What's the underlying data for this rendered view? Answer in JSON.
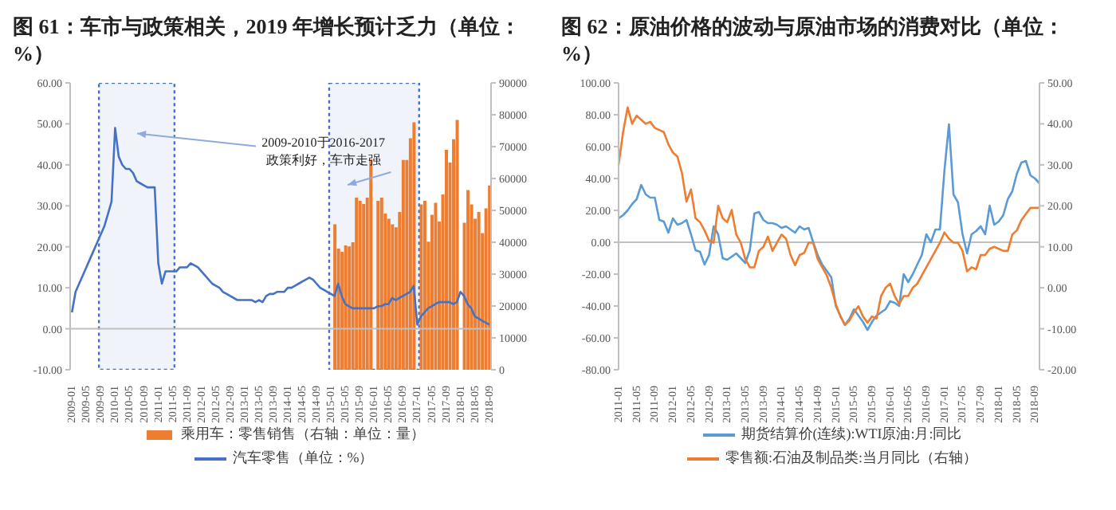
{
  "chart_data": [
    {
      "type": "bar",
      "title": "图 61：车市与政策相关，2019 年增长预计乏力（单位：%）",
      "categories": [
        "2009-01",
        null,
        null,
        null,
        "2009-05",
        null,
        null,
        null,
        "2009-09",
        null,
        null,
        null,
        "2010-01",
        null,
        null,
        null,
        "2010-05",
        null,
        null,
        null,
        "2010-09",
        null,
        null,
        null,
        "2011-01",
        null,
        null,
        null,
        "2011-05",
        null,
        null,
        null,
        "2011-09",
        null,
        null,
        null,
        "2012-01",
        null,
        null,
        null,
        "2012-05",
        null,
        null,
        null,
        "2012-09",
        null,
        null,
        null,
        "2013-01",
        null,
        null,
        null,
        "2013-05",
        null,
        null,
        null,
        "2013-09",
        null,
        null,
        null,
        "2014-01",
        null,
        null,
        null,
        "2014-05",
        null,
        null,
        null,
        "2014-09",
        null,
        null,
        null,
        "2015-01",
        null,
        null,
        null,
        "2015-05",
        null,
        null,
        null,
        "2015-09",
        null,
        null,
        null,
        "2016-01",
        null,
        null,
        null,
        "2016-05",
        null,
        null,
        null,
        "2016-09",
        null,
        null,
        null,
        "2017-01",
        null,
        null,
        null,
        "2017-05",
        null,
        null,
        null,
        "2017-09",
        null,
        null,
        null,
        "2018-01",
        null,
        null,
        null,
        "2018-05",
        null,
        null,
        null,
        "2018-09"
      ],
      "series": [
        {
          "name": "乘用车：零售销售（右轴：单位：量）",
          "axis": "y2",
          "color": "#ed7d31",
          "values": [
            null,
            null,
            null,
            null,
            null,
            null,
            null,
            null,
            null,
            null,
            null,
            null,
            null,
            null,
            null,
            null,
            null,
            null,
            null,
            null,
            null,
            null,
            null,
            null,
            null,
            null,
            null,
            null,
            null,
            null,
            null,
            null,
            null,
            null,
            null,
            null,
            null,
            null,
            null,
            null,
            null,
            null,
            null,
            null,
            null,
            null,
            null,
            null,
            null,
            null,
            null,
            null,
            null,
            null,
            null,
            null,
            null,
            null,
            null,
            null,
            null,
            null,
            null,
            null,
            null,
            null,
            null,
            null,
            null,
            null,
            null,
            null,
            null,
            45600,
            38000,
            37000,
            39000,
            38700,
            40000,
            54000,
            53000,
            52000,
            54000,
            66000,
            null,
            53000,
            54000,
            49000,
            47400,
            45600,
            44700,
            49500,
            65800,
            65800,
            72600,
            77600,
            null,
            51900,
            53000,
            40200,
            48600,
            52400,
            46500,
            55000,
            69000,
            65000,
            72300,
            78400,
            null,
            46100,
            56400,
            51900,
            47400,
            49500,
            42900,
            50600,
            57800
          ]
        },
        {
          "name": "汽车零售（单位：%）",
          "type": "line",
          "axis": "y",
          "color": "#4472c4",
          "values": [
            4,
            9,
            11,
            13,
            15,
            17,
            19,
            21,
            23,
            25,
            28,
            31,
            49,
            42,
            40,
            39,
            39,
            38,
            36,
            35.5,
            35,
            34.5,
            34.5,
            34.5,
            16,
            11,
            14,
            14,
            14,
            14,
            15,
            15,
            15,
            16,
            15.5,
            15,
            14,
            13,
            12,
            11,
            10.5,
            10,
            9,
            8.5,
            8,
            7.5,
            7,
            7,
            7,
            7,
            7,
            6.5,
            7,
            6.5,
            8,
            8.5,
            8.5,
            9,
            9,
            9,
            10,
            10,
            10.5,
            11,
            11.5,
            12,
            12.5,
            12,
            11,
            10,
            9.5,
            9,
            8.5,
            8,
            11,
            8,
            6,
            5.5,
            5,
            5,
            5,
            5,
            5,
            5,
            5,
            5.5,
            5.5,
            6,
            6,
            7.5,
            7,
            7.5,
            8,
            8.5,
            9,
            10.5,
            1,
            3,
            4,
            5,
            5.5,
            6,
            6.5,
            6.5,
            6.5,
            6.5,
            6,
            6.5,
            9,
            8,
            6,
            5,
            3,
            2.5,
            2,
            1.5,
            1
          ]
        }
      ],
      "ylim": [
        -10,
        60
      ],
      "yticks": [
        {
          "value": -10,
          "label": "-10.00"
        },
        {
          "value": 0,
          "label": "0.00"
        },
        {
          "value": 10,
          "label": "10.00"
        },
        {
          "value": 20,
          "label": "20.00"
        },
        {
          "value": 30,
          "label": "30.00"
        },
        {
          "value": 40,
          "label": "40.00"
        },
        {
          "value": 50,
          "label": "50.00"
        },
        {
          "value": 60,
          "label": "60.00"
        }
      ],
      "y2lim": [
        0,
        90000
      ],
      "y2ticks": [
        0,
        10000,
        20000,
        30000,
        40000,
        50000,
        60000,
        70000,
        80000,
        90000
      ],
      "ref_lines": [
        {
          "axis": "y",
          "value": 0,
          "color": "#bfbfbf"
        }
      ],
      "bands": [
        {
          "axis": "x",
          "from": "2009-09",
          "to": "2011-05",
          "color": "#4472c4"
        },
        {
          "axis": "x",
          "from": "2015-01",
          "to": "2017-01",
          "color": "#4472c4"
        }
      ],
      "annotations": [
        "2009-2010于2016-2017政策利好，车市走强"
      ],
      "grid": false,
      "legend": "bottom"
    },
    {
      "type": "line",
      "title": "图 62：原油价格的波动与原油市场的消费对比（单位：%）",
      "categories": [
        "2011-01",
        null,
        null,
        null,
        "2011-05",
        null,
        null,
        null,
        "2011-09",
        null,
        null,
        null,
        "2012-01",
        null,
        null,
        null,
        "2012-05",
        null,
        null,
        null,
        "2012-09",
        null,
        null,
        null,
        "2013-01",
        null,
        null,
        null,
        "2013-05",
        null,
        null,
        null,
        "2013-09",
        null,
        null,
        null,
        "2014-01",
        null,
        null,
        null,
        "2014-05",
        null,
        null,
        null,
        "2014-09",
        null,
        null,
        null,
        "2015-01",
        null,
        null,
        null,
        "2015-05",
        null,
        null,
        null,
        "2015-09",
        null,
        null,
        null,
        "2016-01",
        null,
        null,
        null,
        "2016-05",
        null,
        null,
        null,
        "2016-09",
        null,
        null,
        null,
        "2017-01",
        null,
        null,
        null,
        "2017-05",
        null,
        null,
        null,
        "2017-09",
        null,
        null,
        null,
        "2018-01",
        null,
        null,
        null,
        "2018-05",
        null,
        null,
        null,
        "2018-09",
        null
      ],
      "series": [
        {
          "name": "期货结算价(连续):WTI原油:月:同比",
          "axis": "y",
          "color": "#5b9bd5",
          "values": [
            15,
            17,
            20,
            24,
            27,
            36,
            30,
            28,
            28,
            14,
            13,
            6,
            15,
            11,
            12,
            14,
            5,
            -5,
            -6,
            -14,
            -8,
            10,
            5,
            -10,
            -11,
            -9,
            -7,
            -10,
            -13,
            -5,
            18,
            19,
            14,
            12,
            12,
            11,
            9,
            10,
            8,
            6,
            10,
            8,
            9,
            0,
            -8,
            -14,
            -18,
            -22,
            -40,
            -46,
            -52,
            -48,
            -42,
            -46,
            -50,
            -55,
            -50,
            -46,
            -44,
            -42,
            -37,
            -38,
            -40,
            -20,
            -25,
            -20,
            -14,
            -8,
            5,
            0,
            8,
            8,
            45,
            74,
            30,
            25,
            5,
            -7,
            5,
            7,
            10,
            5,
            23,
            11,
            13,
            17,
            27,
            32,
            43,
            50,
            51,
            42,
            40,
            37
          ]
        },
        {
          "name": "零售额:石油及制品类:当月同比（右轴）",
          "axis": "y2",
          "color": "#ed7d31",
          "values": [
            30,
            38,
            44,
            40,
            42,
            41,
            40,
            40.5,
            39,
            38.5,
            38,
            35,
            33,
            32,
            28,
            21,
            24,
            17,
            16,
            14,
            11.5,
            11,
            20,
            17,
            16,
            19,
            13,
            11,
            7,
            5,
            5,
            9,
            10,
            12.5,
            9,
            11,
            13,
            12,
            8,
            5.5,
            8,
            8.5,
            11,
            11,
            7,
            5,
            3,
            0,
            -4,
            -7,
            -9,
            -8,
            -6,
            -4.5,
            -7,
            -8.5,
            -7,
            -7.5,
            -2,
            0,
            1,
            -2,
            -4,
            -2,
            -2,
            0,
            1,
            3,
            5,
            7,
            9,
            11,
            13.5,
            12,
            11,
            11,
            9,
            4,
            5,
            4.5,
            8,
            8,
            9.5,
            10,
            9.5,
            9,
            9,
            13,
            14,
            16.5,
            18,
            19.5,
            19.5,
            19.5
          ]
        }
      ],
      "ylim": [
        -80,
        100
      ],
      "yticks": [
        {
          "value": -80,
          "label": "-80.00"
        },
        {
          "value": -60,
          "label": "-60.00"
        },
        {
          "value": -40,
          "label": "-40.00"
        },
        {
          "value": -20,
          "label": "-20.00"
        },
        {
          "value": 0,
          "label": "0.00"
        },
        {
          "value": 20,
          "label": "20.00"
        },
        {
          "value": 40,
          "label": "40.00"
        },
        {
          "value": 60,
          "label": "60.00"
        },
        {
          "value": 80,
          "label": "80.00"
        },
        {
          "value": 100,
          "label": "100.00"
        }
      ],
      "y2lim": [
        -20,
        50
      ],
      "y2ticks": [
        {
          "value": -20,
          "label": "-20.00"
        },
        {
          "value": -10,
          "label": "-10.00"
        },
        {
          "value": 0,
          "label": "0.00"
        },
        {
          "value": 10,
          "label": "10.00"
        },
        {
          "value": 20,
          "label": "20.00"
        },
        {
          "value": 30,
          "label": "30.00"
        },
        {
          "value": 40,
          "label": "40.00"
        },
        {
          "value": 50,
          "label": "50.00"
        }
      ],
      "ref_lines": [
        {
          "axis": "y",
          "value": 0,
          "color": "#bfbfbf"
        }
      ],
      "grid": false,
      "legend": "bottom"
    }
  ]
}
